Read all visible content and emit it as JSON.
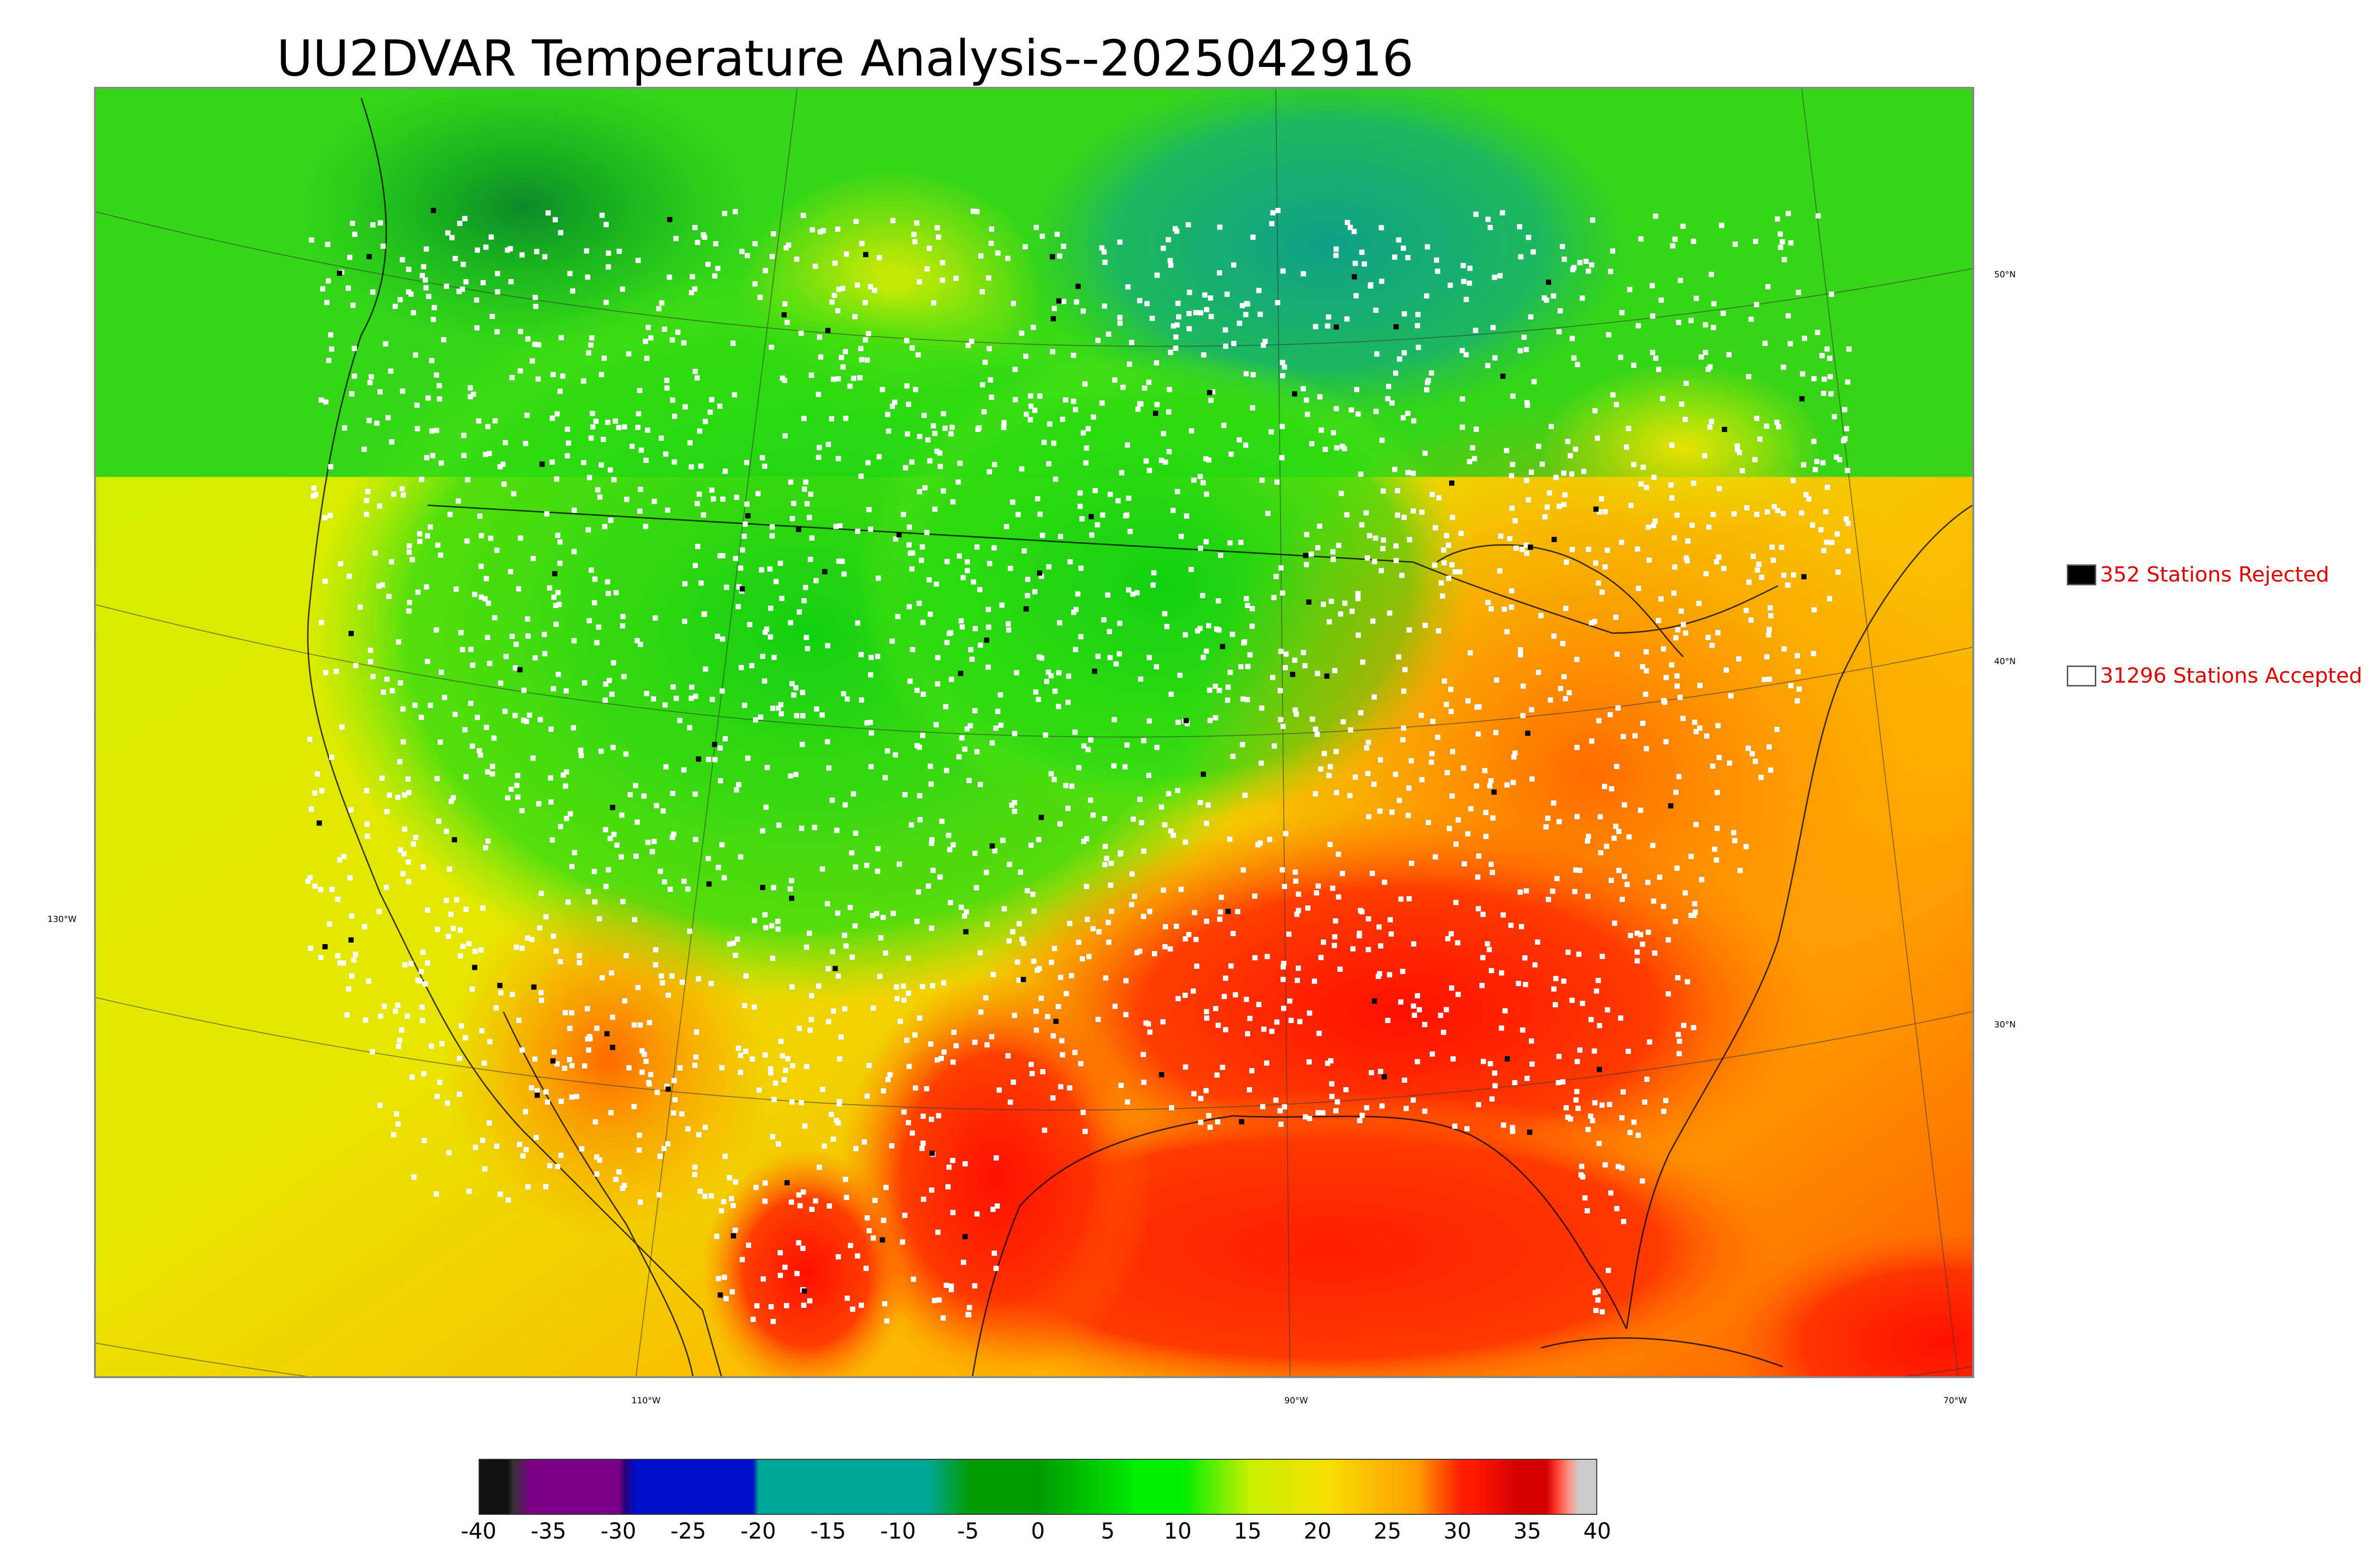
{
  "title": "UU2DVAR Temperature Analysis--2025042916",
  "legend": {
    "rejected": {
      "label": "352 Stations Rejected",
      "color": "#000000"
    },
    "accepted": {
      "label": "31296 Stations Accepted",
      "color": "#ffffff"
    }
  },
  "graticule": {
    "lat_labels": [
      "50°N",
      "40°N",
      "30°N"
    ],
    "lon_labels": [
      "130°W",
      "110°W",
      "90°W",
      "70°W"
    ]
  },
  "colorbar": {
    "ticks": [
      "-40",
      "-35",
      "-30",
      "-25",
      "-20",
      "-15",
      "-10",
      "-5",
      "0",
      "5",
      "10",
      "15",
      "20",
      "25",
      "30",
      "35",
      "40"
    ],
    "colors": {
      "black": "#111111",
      "purple": "#7a0085",
      "blue": "#0010c8",
      "teal": "#00a89a",
      "green_dark": "#009a00",
      "green": "#00ee00",
      "yellow_green": "#c8f000",
      "yellow": "#f6dd00",
      "orange": "#ff9c00",
      "red": "#ff1a00",
      "dark_red": "#d40000",
      "gray": "#cccccc"
    }
  },
  "map_colors": {
    "ocean_yellow": "#e6ee00",
    "ocean_orange": "#ffaa00",
    "gulf_red": "#ff2d00",
    "land_green": "#1cd21c",
    "land_teal": "#13a890",
    "land_red": "#ff2200",
    "station_accepted": "#ffffff",
    "station_rejected": "#000000"
  }
}
